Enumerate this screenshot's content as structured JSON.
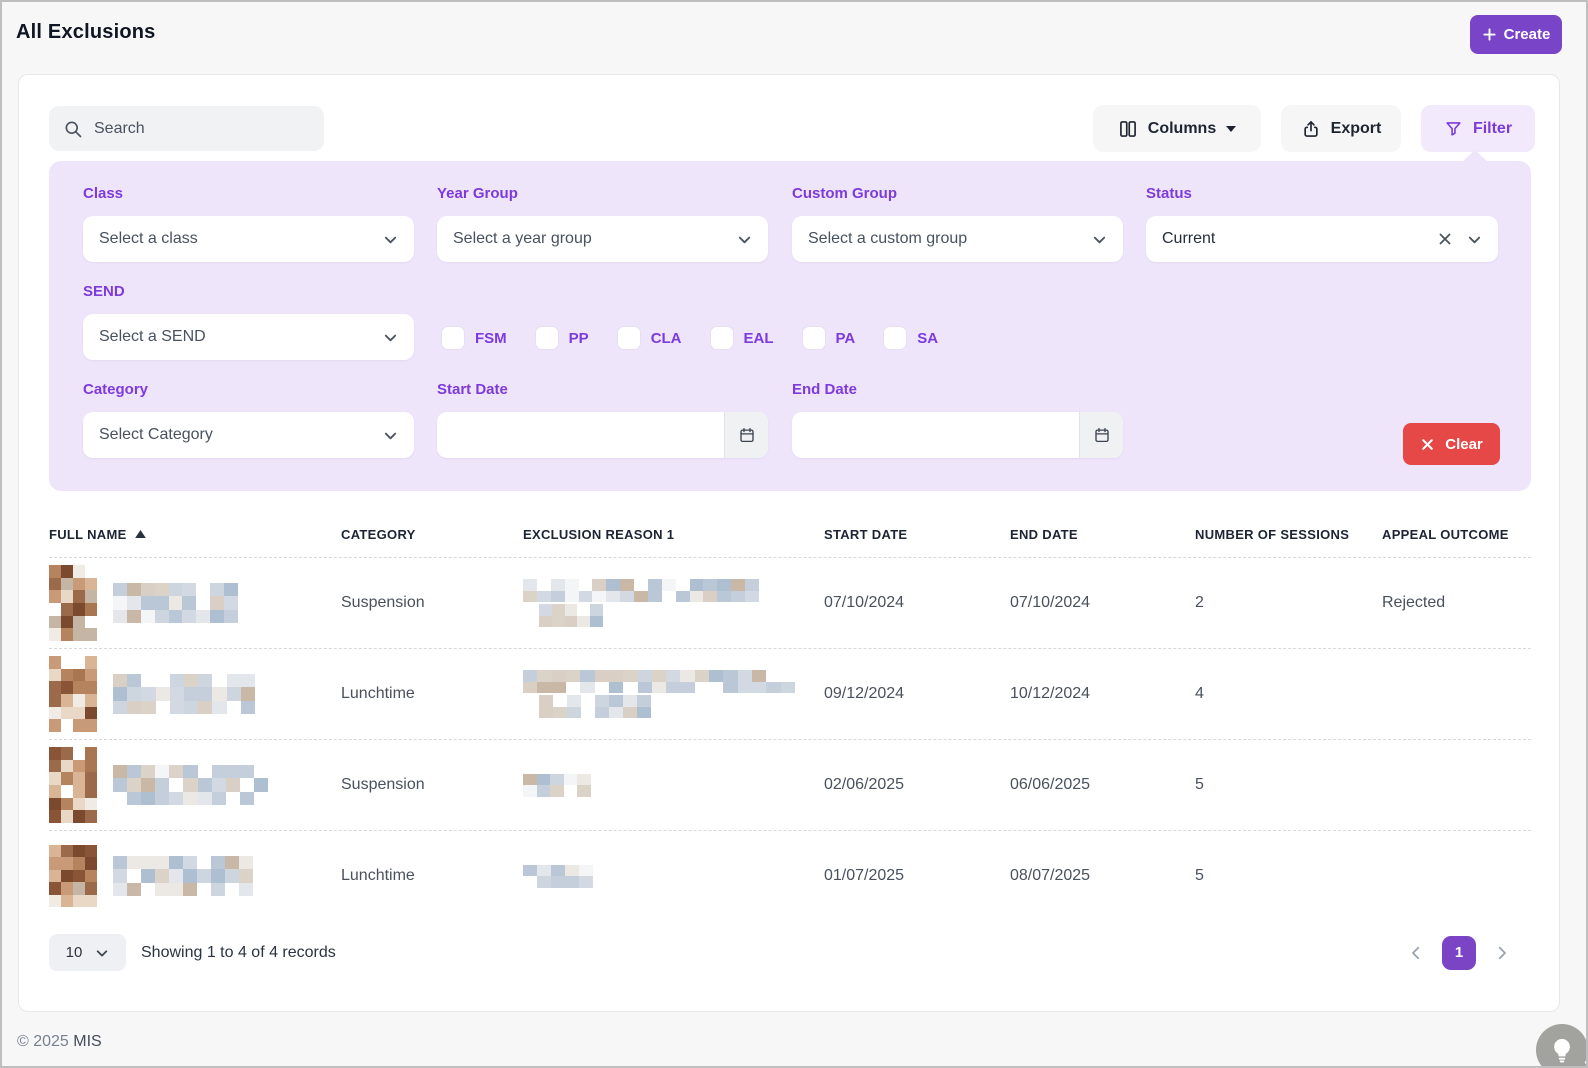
{
  "colors": {
    "accent_purple": "#7a44c9",
    "label_purple": "#7d3bdb",
    "filter_panel_bg": "#efe5fb",
    "filter_button_bg": "#f2eafc",
    "clear_red": "#e64747",
    "pagination_active_bg": "#7a44c4"
  },
  "header": {
    "title": "All Exclusions",
    "create_label": "Create"
  },
  "toolbar": {
    "search_placeholder": "Search",
    "columns_label": "Columns",
    "export_label": "Export",
    "filter_label": "Filter"
  },
  "filter_panel": {
    "class_label": "Class",
    "class_placeholder": "Select a class",
    "year_group_label": "Year Group",
    "year_group_placeholder": "Select a year group",
    "custom_group_label": "Custom Group",
    "custom_group_placeholder": "Select a custom group",
    "status_label": "Status",
    "status_value": "Current",
    "send_label": "SEND",
    "send_placeholder": "Select a SEND",
    "flags": [
      "FSM",
      "PP",
      "CLA",
      "EAL",
      "PA",
      "SA"
    ],
    "category_label": "Category",
    "category_placeholder": "Select Category",
    "start_date_label": "Start Date",
    "start_date_value": "",
    "end_date_label": "End Date",
    "end_date_value": "",
    "clear_label": "Clear"
  },
  "table": {
    "headers": {
      "full_name": "FULL NAME",
      "category": "CATEGORY",
      "exclusion_reason": "EXCLUSION REASON 1",
      "start_date": "START DATE",
      "end_date": "END DATE",
      "sessions": "NUMBER OF SESSIONS",
      "appeal_outcome": "APPEAL OUTCOME"
    },
    "rows": [
      {
        "category": "Suspension",
        "start_date": "07/10/2024",
        "end_date": "07/10/2024",
        "sessions": "2",
        "appeal_outcome": "Rejected"
      },
      {
        "category": "Lunchtime",
        "start_date": "09/12/2024",
        "end_date": "10/12/2024",
        "sessions": "4",
        "appeal_outcome": ""
      },
      {
        "category": "Suspension",
        "start_date": "02/06/2025",
        "end_date": "06/06/2025",
        "sessions": "5",
        "appeal_outcome": ""
      },
      {
        "category": "Lunchtime",
        "start_date": "01/07/2025",
        "end_date": "08/07/2025",
        "sessions": "5",
        "appeal_outcome": ""
      }
    ]
  },
  "footer": {
    "page_size": "10",
    "summary": "Showing 1 to 4 of 4 records",
    "current_page": "1",
    "copyright_prefix": "© 2025 ",
    "copyright_brand": "MIS"
  },
  "redaction": {
    "palettes": {
      "portrait": [
        "#7b4a2e",
        "#9a6a4a",
        "#b5845f",
        "#c99a78",
        "#8a5436",
        "#d9b596",
        "#e9d8c6",
        "#c4b5a5",
        "#f0ebe4",
        "#a87650"
      ],
      "text": [
        "#e3e7ec",
        "#d2d9e2",
        "#c5cedb",
        "#d9cfc5",
        "#c9b8a6",
        "#bac7d6",
        "#ece9e4",
        "#f4f5f6",
        "#cdd5df",
        "#dcd3c8",
        "#aebfd2"
      ]
    }
  }
}
